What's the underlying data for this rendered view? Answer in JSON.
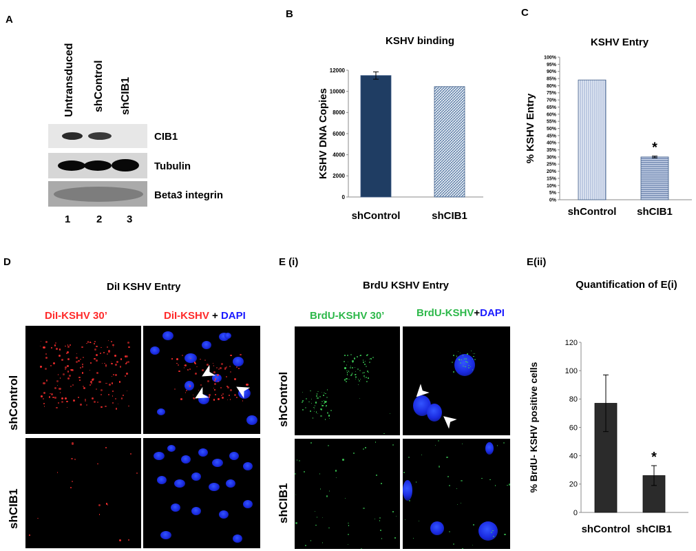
{
  "panels": {
    "A": {
      "letter": "A",
      "lanes_header": [
        "Untransduced",
        "shControl",
        "shCIB1"
      ],
      "blots": [
        "CIB1",
        "Tubulin",
        "Beta3 integrin"
      ],
      "lane_numbers": [
        "1",
        "2",
        "3"
      ]
    },
    "B": {
      "letter": "B"
    },
    "C": {
      "letter": "C"
    },
    "D": {
      "letter": "D",
      "title": "DiI KSHV Entry",
      "col1": "DiI-KSHV 30’",
      "col2_red": "DiI-KSHV",
      "col2_plus": " + ",
      "col2_blue": "DAPI",
      "rows": [
        "shControl",
        "shCIB1"
      ]
    },
    "E": {
      "letter": "E (i)",
      "title": "BrdU KSHV Entry",
      "col1": "BrdU-KSHV  30’",
      "col2_green": "BrdU-KSHV",
      "col2_plus": "+",
      "col2_blue": "DAPI",
      "rows": [
        "shControl",
        "shCIB1"
      ]
    },
    "Eii": {
      "letter": "E(ii)"
    }
  },
  "colors": {
    "red": "#ff2a2a",
    "green": "#2db84a",
    "blue": "#1a1aff",
    "navy": "#1f3d63",
    "dark": "#2b2b2b"
  },
  "chart_data": [
    {
      "id": "B",
      "type": "bar",
      "title": "KSHV binding",
      "ylabel": "KSHV DNA Copies",
      "categories": [
        "shControl",
        "shCIB1"
      ],
      "values": [
        11500,
        10450
      ],
      "errors": [
        350,
        0
      ],
      "ylim": [
        0,
        12000
      ],
      "yticks": [
        "0",
        "2000",
        "4000",
        "6000",
        "8000",
        "10000",
        "12000"
      ]
    },
    {
      "id": "C",
      "type": "bar",
      "title": "KSHV Entry",
      "ylabel": "%  KSHV  Entry",
      "categories": [
        "shControl",
        "shCIB1"
      ],
      "values": [
        84,
        30
      ],
      "errors": [
        0,
        0.6
      ],
      "ylim": [
        0,
        100
      ],
      "yticks": [
        "0%",
        "5%",
        "10%",
        "15%",
        "20%",
        "25%",
        "30%",
        "35%",
        "40%",
        "45%",
        "50%",
        "55%",
        "60%",
        "65%",
        "70%",
        "75%",
        "80%",
        "85%",
        "90%",
        "95%",
        "100%"
      ],
      "annotation": "*"
    },
    {
      "id": "Eii",
      "type": "bar",
      "title": "Quantification of E(i)",
      "ylabel": "% BrdU- KSHV positive cells",
      "categories": [
        "shControl",
        "shCIB1"
      ],
      "values": [
        77,
        26
      ],
      "errors": [
        20,
        7
      ],
      "ylim": [
        0,
        120
      ],
      "yticks": [
        "0",
        "20",
        "40",
        "60",
        "80",
        "100",
        "120"
      ],
      "annotation": "*"
    }
  ]
}
